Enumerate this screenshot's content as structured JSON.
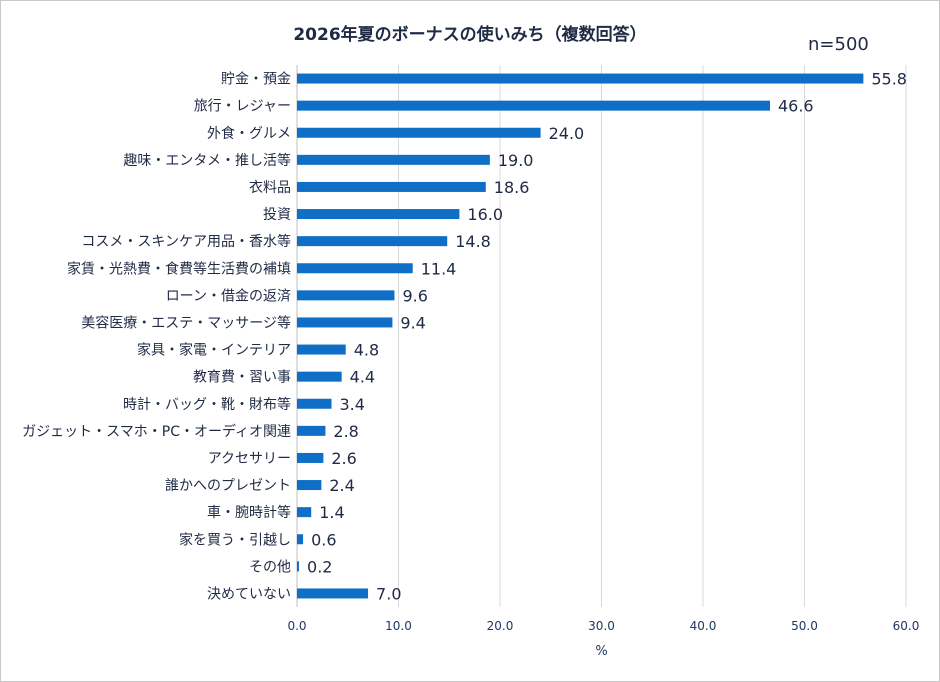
{
  "chart_data": {
    "type": "bar",
    "orientation": "horizontal",
    "title": "2026年夏のボーナスの使いみち（複数回答）",
    "annotation": "n=500",
    "xlabel": "%",
    "xlim": [
      0,
      60
    ],
    "xticks": [
      "0.0",
      "10.0",
      "20.0",
      "30.0",
      "40.0",
      "50.0",
      "60.0"
    ],
    "grid": "vertical",
    "bar_color": "#0f6fc6",
    "categories": [
      "貯金・預金",
      "旅行・レジャー",
      "外食・グルメ",
      "趣味・エンタメ・推し活等",
      "衣料品",
      "投資",
      "コスメ・スキンケア用品・香水等",
      "家賃・光熱費・食費等生活費の補填",
      "ローン・借金の返済",
      "美容医療・エステ・マッサージ等",
      "家具・家電・インテリア",
      "教育費・習い事",
      "時計・バッグ・靴・財布等",
      "ガジェット・スマホ・PC・オーディオ関連",
      "アクセサリー",
      "誰かへのプレゼント",
      "車・腕時計等",
      "家を買う・引越し",
      "その他",
      "決めていない"
    ],
    "values": [
      55.8,
      46.6,
      24.0,
      19.0,
      18.6,
      16.0,
      14.8,
      11.4,
      9.6,
      9.4,
      4.8,
      4.4,
      3.4,
      2.8,
      2.6,
      2.4,
      1.4,
      0.6,
      0.2,
      7.0
    ],
    "value_labels": [
      "55.8",
      "46.6",
      "24.0",
      "19.0",
      "18.6",
      "16.0",
      "14.8",
      "11.4",
      "9.6",
      "9.4",
      "4.8",
      "4.4",
      "3.4",
      "2.8",
      "2.6",
      "2.4",
      "1.4",
      "0.6",
      "0.2",
      "7.0"
    ]
  }
}
